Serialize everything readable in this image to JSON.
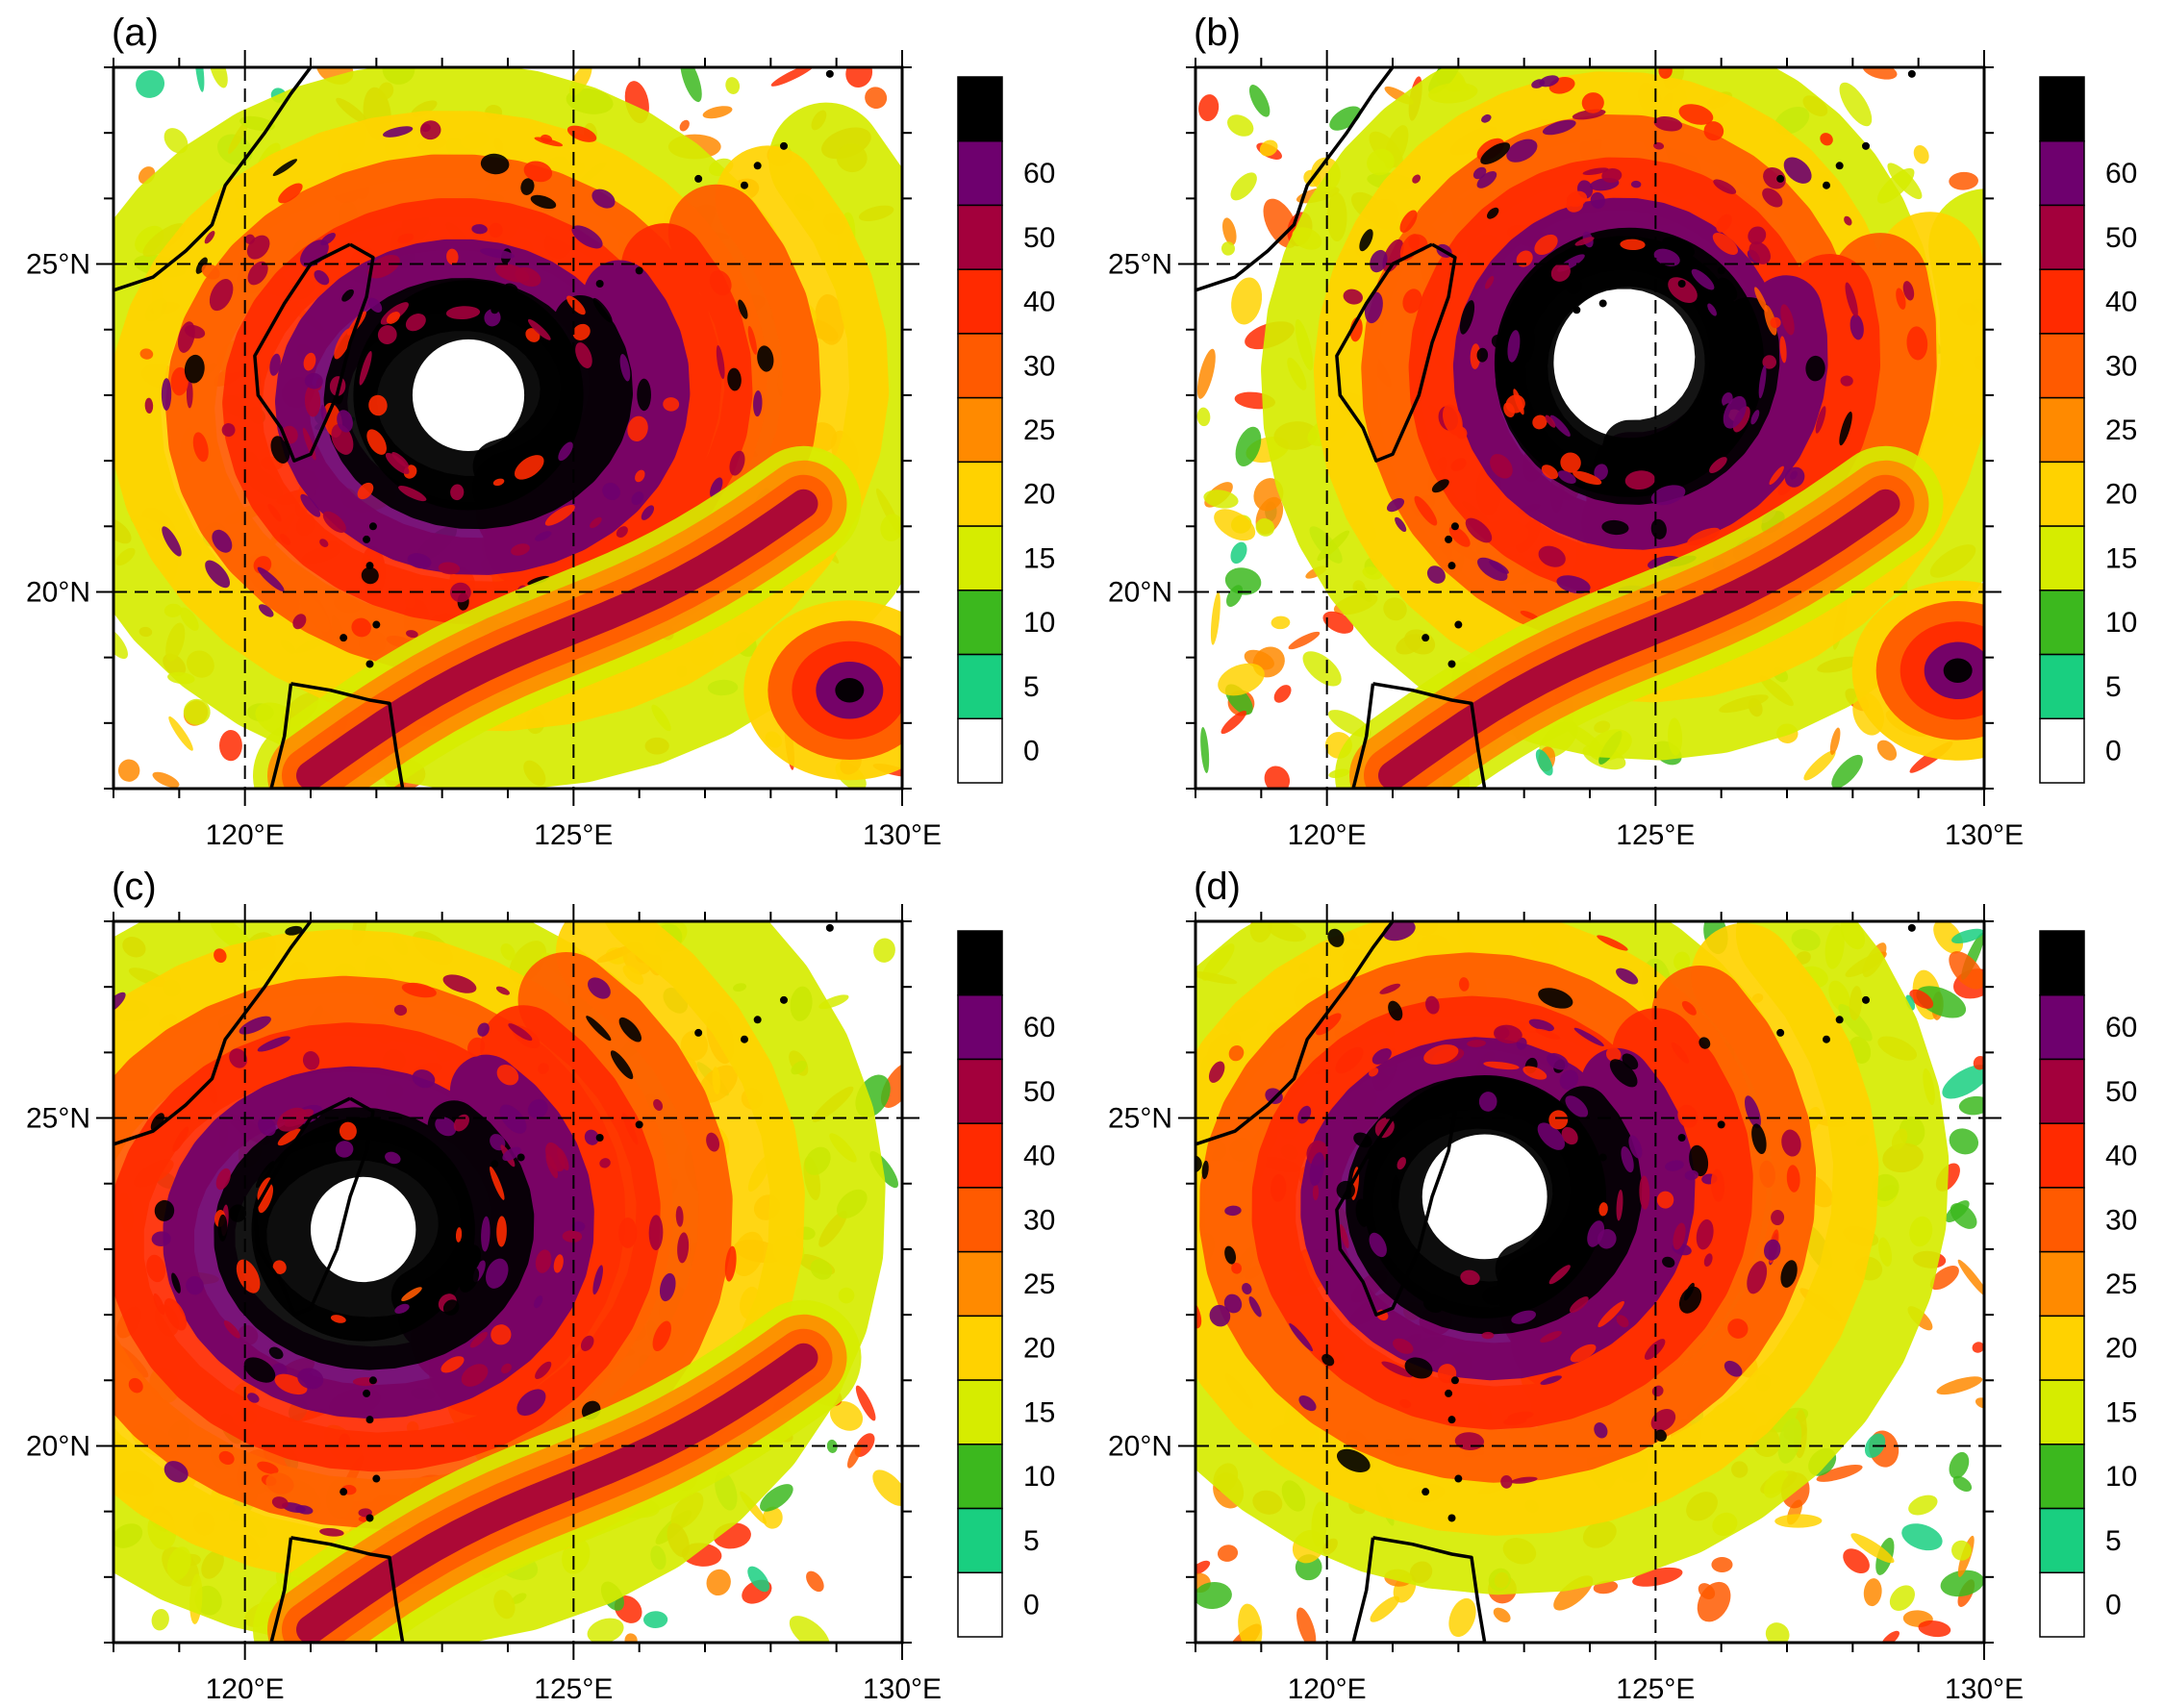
{
  "panels": [
    {
      "id": "a",
      "label": "(a)",
      "center": [
        123.4,
        23.0
      ],
      "eye_r": 0.55,
      "spread": [
        1.25,
        1.05
      ],
      "rotation": -20,
      "south_band": true,
      "extra_blob": [
        129.2,
        18.5
      ]
    },
    {
      "id": "b",
      "label": "(b)",
      "center": [
        124.6,
        23.5
      ],
      "eye_r": 0.85,
      "spread": [
        1.0,
        1.0
      ],
      "rotation": 0,
      "south_band": true,
      "extra_blob": [
        129.6,
        18.8
      ]
    },
    {
      "id": "c",
      "label": "(c)",
      "center": [
        121.8,
        23.3
      ],
      "eye_r": 0.5,
      "spread": [
        1.35,
        1.15
      ],
      "rotation": -35,
      "south_band": true,
      "extra_blob": null
    },
    {
      "id": "d",
      "label": "(d)",
      "center": [
        122.4,
        23.8
      ],
      "eye_r": 0.65,
      "spread": [
        1.15,
        1.05
      ],
      "rotation": -25,
      "south_band": false,
      "extra_blob": null
    }
  ],
  "map": {
    "lon_range": [
      118,
      130
    ],
    "lat_range": [
      17,
      28
    ],
    "lon_ticks": [
      {
        "value": 120,
        "label": "120°E"
      },
      {
        "value": 125,
        "label": "125°E"
      },
      {
        "value": 130,
        "label": "130°E"
      }
    ],
    "lat_ticks": [
      {
        "value": 20,
        "label": "20°N"
      },
      {
        "value": 25,
        "label": "25°N"
      }
    ],
    "gridlines_dashed": true
  },
  "colorbar": {
    "levels": [
      {
        "label": "0",
        "color": "#ffffff"
      },
      {
        "label": "5",
        "color": "#19cf80"
      },
      {
        "label": "10",
        "color": "#3cb81e"
      },
      {
        "label": "15",
        "color": "#d6ec00"
      },
      {
        "label": "20",
        "color": "#ffd200"
      },
      {
        "label": "25",
        "color": "#ff8a00"
      },
      {
        "label": "30",
        "color": "#ff5a00"
      },
      {
        "label": "40",
        "color": "#ff2a00"
      },
      {
        "label": "50",
        "color": "#a3003c"
      },
      {
        "label": "60",
        "color": "#6e006e"
      },
      {
        "label": "",
        "color": "#000000"
      }
    ]
  }
}
